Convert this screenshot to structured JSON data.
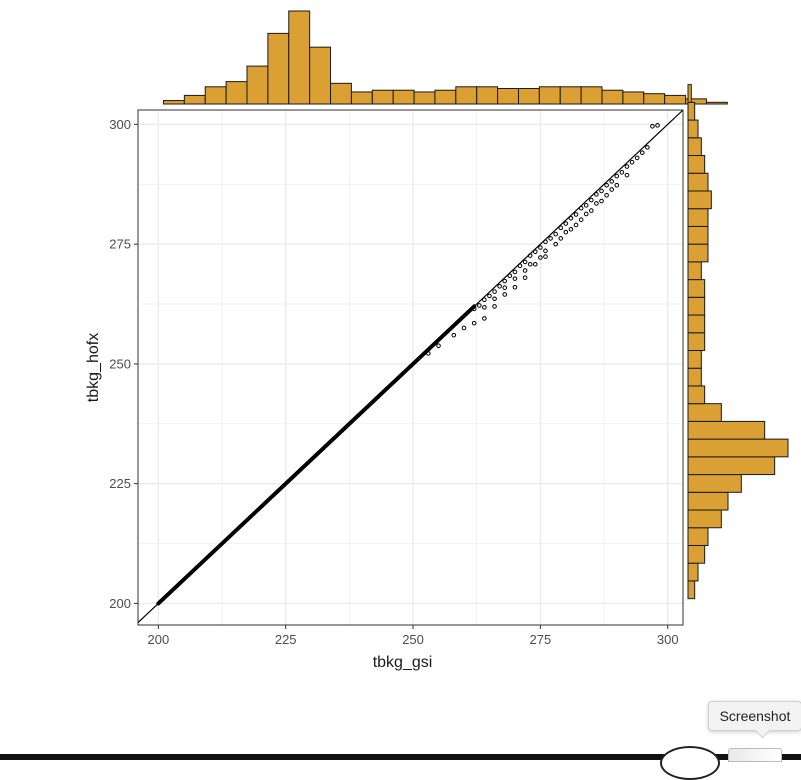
{
  "chart_data": {
    "type": "scatter",
    "xlabel": "tbkg_gsi",
    "ylabel": "tbkg_hofx",
    "xlim": [
      196,
      303
    ],
    "ylim": [
      195.5,
      303
    ],
    "x_ticks": [
      200,
      225,
      250,
      275,
      300
    ],
    "y_ticks": [
      200,
      225,
      250,
      275,
      300
    ],
    "x_minor_ticks": [
      212.5,
      237.5,
      262.5,
      287.5
    ],
    "y_minor_ticks": [
      212.5,
      237.5,
      262.5,
      287.5
    ],
    "grid": true,
    "reference_line": {
      "slope": 1,
      "intercept": 0
    },
    "dense_line_segment": {
      "x_start": 200,
      "x_end": 262
    },
    "points": [
      [
        262,
        261.5
      ],
      [
        263,
        262.2
      ],
      [
        264,
        263.4
      ],
      [
        264,
        261.8
      ],
      [
        265,
        264.2
      ],
      [
        266,
        265.1
      ],
      [
        266,
        263.6
      ],
      [
        267,
        266.2
      ],
      [
        268,
        267.3
      ],
      [
        268,
        265.9
      ],
      [
        269,
        268.4
      ],
      [
        270,
        269.2
      ],
      [
        270,
        267.8
      ],
      [
        271,
        270.5
      ],
      [
        272,
        271.3
      ],
      [
        272,
        269.5
      ],
      [
        273,
        272.6
      ],
      [
        273,
        270.8
      ],
      [
        274,
        273.4
      ],
      [
        275,
        274.3
      ],
      [
        275,
        272.2
      ],
      [
        276,
        275.5
      ],
      [
        276,
        273.6
      ],
      [
        277,
        276.2
      ],
      [
        278,
        277.1
      ],
      [
        278,
        275.0
      ],
      [
        279,
        278.4
      ],
      [
        279,
        276.2
      ],
      [
        280,
        279.3
      ],
      [
        280,
        277.5
      ],
      [
        281,
        280.4
      ],
      [
        281,
        278.1
      ],
      [
        282,
        281.2
      ],
      [
        282,
        279.0
      ],
      [
        283,
        282.5
      ],
      [
        283,
        280.1
      ],
      [
        284,
        283.1
      ],
      [
        284,
        281.3
      ],
      [
        285,
        284.2
      ],
      [
        285,
        282.0
      ],
      [
        286,
        285.4
      ],
      [
        286,
        283.5
      ],
      [
        287,
        286.1
      ],
      [
        287,
        284.0
      ],
      [
        288,
        287.3
      ],
      [
        288,
        285.2
      ],
      [
        289,
        288.1
      ],
      [
        289,
        286.4
      ],
      [
        290,
        289.2
      ],
      [
        290,
        287.3
      ],
      [
        291,
        290.0
      ],
      [
        292,
        291.2
      ],
      [
        292,
        289.4
      ],
      [
        293,
        292.1
      ],
      [
        294,
        293.0
      ],
      [
        295,
        294.1
      ],
      [
        296,
        295.2
      ],
      [
        298,
        299.8
      ],
      [
        297,
        299.6
      ],
      [
        270,
        266.0
      ],
      [
        272,
        268.0
      ],
      [
        274,
        270.8
      ],
      [
        276,
        272.4
      ],
      [
        262,
        258.5
      ],
      [
        264,
        259.5
      ],
      [
        266,
        262.0
      ],
      [
        268,
        264.5
      ],
      [
        260,
        257.5
      ],
      [
        258,
        256.0
      ],
      [
        255,
        253.8
      ],
      [
        253,
        252.2
      ]
    ],
    "top_histogram": {
      "bin_edges": [
        201,
        203.5
      ],
      "bin_width": 4.1,
      "counts": [
        2,
        5,
        10,
        13,
        22,
        41,
        54,
        33,
        12,
        7,
        8,
        8,
        7,
        8,
        10,
        10,
        9,
        9,
        10,
        10,
        10,
        8,
        7,
        6,
        5,
        3,
        1
      ]
    },
    "right_histogram": {
      "bin_start": 201,
      "bin_width": 3.7,
      "counts": [
        2,
        3,
        5,
        6,
        10,
        12,
        16,
        26,
        30,
        23,
        10,
        5,
        4,
        4,
        5,
        5,
        5,
        5,
        4,
        6,
        6,
        6,
        7,
        6,
        5,
        4,
        3,
        2,
        1
      ]
    }
  },
  "colors": {
    "panel_bg": "#ffffff",
    "grid": "#ebebeb",
    "panel_border": "#333333",
    "hist_fill": "#daa034",
    "hist_stroke": "#1a1a1a",
    "point": "#000000"
  },
  "tooltip": {
    "label": "Screenshot"
  }
}
